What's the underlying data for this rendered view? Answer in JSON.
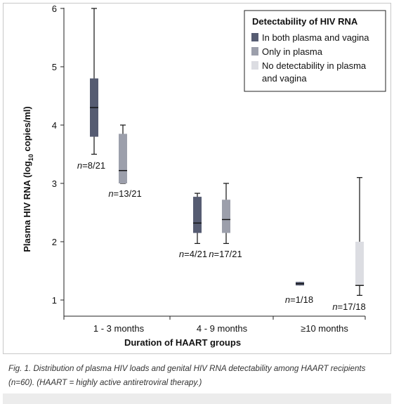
{
  "chart_data": {
    "type": "box",
    "ylabel_main": "Plasma HIV RNA (log",
    "ylabel_sub": "10",
    "ylabel_tail": " copies/ml)",
    "xlabel": "Duration of HAART groups",
    "ylim": [
      0.8,
      6.05
    ],
    "yticks": [
      "1",
      "2",
      "3",
      "4",
      "5",
      "6"
    ],
    "ytick_values": [
      1,
      2,
      3,
      4,
      5,
      6
    ],
    "categories": [
      "1 - 3 months",
      "4 - 9 months",
      "≥10 months"
    ],
    "legend": {
      "title": "Detectability of HIV RNA",
      "placement": "top-right",
      "entries": [
        {
          "label": "In both plasma and vagina",
          "color": "#565c72"
        },
        {
          "label": "Only in plasma",
          "color": "#9c9fab"
        },
        {
          "label": "No detectability in plasma",
          "label2": "and vagina",
          "color": "#dcdde2"
        }
      ]
    },
    "boxes": [
      {
        "group": 0,
        "series": 0,
        "whisker_low": 3.5,
        "q1": 3.8,
        "median": 4.3,
        "q3": 4.8,
        "whisker_high": 6.0,
        "n_italic": "n",
        "n_text": "=8/21",
        "has_caps": true
      },
      {
        "group": 0,
        "series": 1,
        "whisker_low": 3.0,
        "q1": 3.0,
        "median": 3.22,
        "q3": 3.85,
        "whisker_high": 4.0,
        "n_italic": "n",
        "n_text": "=13/21",
        "has_caps": true
      },
      {
        "group": 1,
        "series": 0,
        "whisker_low": 1.97,
        "q1": 2.15,
        "median": 2.32,
        "q3": 2.77,
        "whisker_high": 2.83,
        "n_italic": "n",
        "n_text": "=4/21",
        "has_caps": true
      },
      {
        "group": 1,
        "series": 1,
        "whisker_low": 1.97,
        "q1": 2.15,
        "median": 2.38,
        "q3": 2.72,
        "whisker_high": 3.0,
        "n_italic": "n",
        "n_text": "=17/21",
        "has_caps": true
      },
      {
        "group": 2,
        "series": 0,
        "whisker_low": 1.25,
        "q1": 1.25,
        "median": 1.28,
        "q3": 1.31,
        "whisker_high": 1.31,
        "n_italic": "n",
        "n_text": "=1/18",
        "has_caps": false
      },
      {
        "group": 2,
        "series": 2,
        "whisker_low": 1.08,
        "q1": 1.25,
        "median": 1.25,
        "q3": 2.0,
        "whisker_high": 3.1,
        "n_italic": "n",
        "n_text": "=17/18",
        "has_caps": true
      }
    ]
  },
  "caption": "Fig. 1. Distribution of plasma HIV loads and genital HIV RNA detectability among HAART recipients (n=60). (HAART = highly active antiretroviral therapy.)"
}
